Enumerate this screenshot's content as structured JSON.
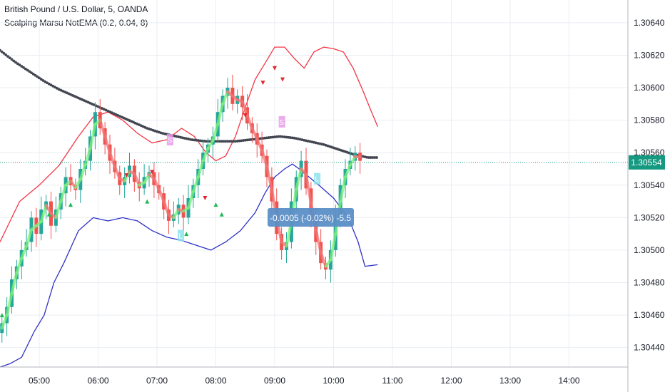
{
  "header": {
    "symbol": "British Pound / U.S. Dollar, 5, OANDA",
    "indicator": "Scalping Marsu NotEMA (0.2, 0.04, 8)"
  },
  "measure_label": "-0.0005 (-0.02%) -5.5",
  "signal_labels": [
    "S",
    "S",
    "L",
    "L"
  ],
  "colors": {
    "up_candle": "#26a69a",
    "down_candle": "#ef5350",
    "upper_band": "#f23645",
    "lower_band": "#2f32c7",
    "ema_dots": "#434651",
    "ma_up": "#7cf27c",
    "ma_down": "#f27474",
    "price_line": "#159980",
    "price_badge": "#159980",
    "measure_box": "#5b8ec7",
    "grid": "#e9edf2",
    "text": "#131722",
    "short_label": "#e69de9",
    "long_label": "#8de3eb"
  },
  "chart_data": {
    "type": "candlestick",
    "title": "British Pound / U.S. Dollar, 5, OANDA",
    "indicator": "Scalping Marsu NotEMA (0.2, 0.04, 8)",
    "x_tick_labels": [
      "05:00",
      "06:00",
      "07:00",
      "08:00",
      "09:00",
      "10:00",
      "11:00",
      "12:00",
      "13:00",
      "14:00"
    ],
    "y_tick_labels": [
      "1.30640",
      "1.30620",
      "1.30600",
      "1.30580",
      "1.30560",
      "1.30540",
      "1.30520",
      "1.30500",
      "1.30480",
      "1.30460",
      "1.30440"
    ],
    "ylim": [
      1.30428,
      1.30654
    ],
    "x_range_minutes": [
      260,
      900
    ],
    "current_price": 1.30554,
    "current_price_label": "1.30554",
    "candle_interval_minutes": 5,
    "candles_close": [
      1.30455,
      1.30465,
      1.30482,
      1.3049,
      1.305,
      1.30505,
      1.3052,
      1.3051,
      1.30525,
      1.3053,
      1.30515,
      1.30525,
      1.30535,
      1.30545,
      1.3054,
      1.30537,
      1.3055,
      1.30555,
      1.3057,
      1.30585,
      1.30575,
      1.30565,
      1.30555,
      1.30548,
      1.3054,
      1.30545,
      1.30552,
      1.30542,
      1.30538,
      1.30545,
      1.30548,
      1.3054,
      1.30535,
      1.30525,
      1.30518,
      1.30522,
      1.30528,
      1.3052,
      1.30532,
      1.3054,
      1.3055,
      1.3056,
      1.30565,
      1.3057,
      1.30585,
      1.30595,
      1.306,
      1.3059,
      1.30595,
      1.30588,
      1.30578,
      1.30572,
      1.30565,
      1.30558,
      1.30545,
      1.3053,
      1.3051,
      1.305,
      1.30505,
      1.3053,
      1.30545,
      1.30555,
      1.30538,
      1.3052,
      1.30505,
      1.30492,
      1.30488,
      1.305,
      1.3052,
      1.3054,
      1.3055,
      1.30555,
      1.3056,
      1.30555
    ],
    "upper_band": [
      [
        260,
        1.30505
      ],
      [
        280,
        1.3053
      ],
      [
        300,
        1.3054
      ],
      [
        320,
        1.30552
      ],
      [
        340,
        1.3057
      ],
      [
        355,
        1.30582
      ],
      [
        370,
        1.30585
      ],
      [
        385,
        1.3058
      ],
      [
        400,
        1.30572
      ],
      [
        415,
        1.30566
      ],
      [
        430,
        1.30568
      ],
      [
        445,
        1.30575
      ],
      [
        458,
        1.3057
      ],
      [
        470,
        1.3056
      ],
      [
        480,
        1.30555
      ],
      [
        490,
        1.30558
      ],
      [
        500,
        1.3057
      ],
      [
        510,
        1.30588
      ],
      [
        520,
        1.30605
      ],
      [
        530,
        1.30615
      ],
      [
        540,
        1.30625
      ],
      [
        550,
        1.30625
      ],
      [
        560,
        1.30618
      ],
      [
        570,
        1.30612
      ],
      [
        580,
        1.30622
      ],
      [
        590,
        1.30625
      ],
      [
        600,
        1.30624
      ],
      [
        610,
        1.30622
      ],
      [
        620,
        1.30612
      ],
      [
        630,
        1.30598
      ],
      [
        638,
        1.30586
      ],
      [
        645,
        1.30576
      ]
    ],
    "lower_band": [
      [
        260,
        1.30428
      ],
      [
        270,
        1.3043
      ],
      [
        282,
        1.30434
      ],
      [
        295,
        1.3045
      ],
      [
        305,
        1.3046
      ],
      [
        315,
        1.3048
      ],
      [
        325,
        1.30492
      ],
      [
        340,
        1.30512
      ],
      [
        355,
        1.3052
      ],
      [
        370,
        1.30518
      ],
      [
        385,
        1.3052
      ],
      [
        400,
        1.30518
      ],
      [
        415,
        1.30512
      ],
      [
        430,
        1.30508
      ],
      [
        445,
        1.30506
      ],
      [
        460,
        1.30503
      ],
      [
        475,
        1.305
      ],
      [
        490,
        1.30505
      ],
      [
        505,
        1.30512
      ],
      [
        520,
        1.30523
      ],
      [
        530,
        1.30535
      ],
      [
        540,
        1.30545
      ],
      [
        550,
        1.3055
      ],
      [
        558,
        1.30553
      ],
      [
        565,
        1.3055
      ],
      [
        575,
        1.30545
      ],
      [
        585,
        1.3054
      ],
      [
        600,
        1.30532
      ],
      [
        615,
        1.3052
      ],
      [
        625,
        1.30505
      ],
      [
        632,
        1.3049
      ],
      [
        645,
        1.30491
      ]
    ],
    "ema": [
      [
        260,
        1.30623
      ],
      [
        275,
        1.30616
      ],
      [
        290,
        1.3061
      ],
      [
        305,
        1.30604
      ],
      [
        320,
        1.30599
      ],
      [
        335,
        1.30595
      ],
      [
        350,
        1.30591
      ],
      [
        365,
        1.30587
      ],
      [
        380,
        1.30583
      ],
      [
        395,
        1.30579
      ],
      [
        410,
        1.30575
      ],
      [
        425,
        1.30572
      ],
      [
        440,
        1.3057
      ],
      [
        455,
        1.30568
      ],
      [
        470,
        1.30567
      ],
      [
        485,
        1.30567
      ],
      [
        500,
        1.30567
      ],
      [
        515,
        1.30568
      ],
      [
        530,
        1.30569
      ],
      [
        545,
        1.3057
      ],
      [
        560,
        1.30569
      ],
      [
        575,
        1.30567
      ],
      [
        590,
        1.30565
      ],
      [
        605,
        1.30562
      ],
      [
        620,
        1.30559
      ],
      [
        635,
        1.30557
      ],
      [
        645,
        1.30557
      ]
    ],
    "bands_data_units_note": "upper/lower/ema given as [minutes since 00:00, price]"
  }
}
